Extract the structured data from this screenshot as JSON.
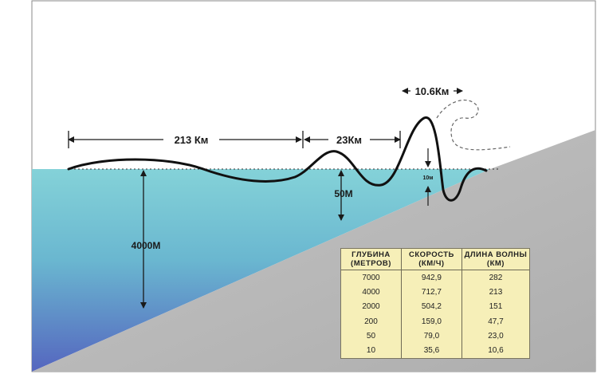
{
  "labels": {
    "wavelength_open": "213 Км",
    "wavelength_mid": "23Км",
    "wavelength_shore": "10.6Км",
    "depth_deep": "4000М",
    "depth_shallow": "50М",
    "height_small": "10м"
  },
  "colors": {
    "water_surface": "#7fcdd6",
    "water_deep": "#5a6cc0",
    "seabed": "#b8b8b8",
    "table_bg": "#f6efb8"
  },
  "table": {
    "headers": [
      {
        "line1": "ГЛУБИНА",
        "line2": "(МЕТРОВ)"
      },
      {
        "line1": "СКОРОСТЬ",
        "line2": "(КМ/Ч)"
      },
      {
        "line1": "ДЛИНА ВОЛНЫ",
        "line2": "(КМ)"
      }
    ],
    "rows": [
      [
        "7000",
        "942,9",
        "282"
      ],
      [
        "4000",
        "712,7",
        "213"
      ],
      [
        "2000",
        "504,2",
        "151"
      ],
      [
        "200",
        "159,0",
        "47,7"
      ],
      [
        "50",
        "79,0",
        "23,0"
      ],
      [
        "10",
        "35,6",
        "10,6"
      ]
    ]
  }
}
